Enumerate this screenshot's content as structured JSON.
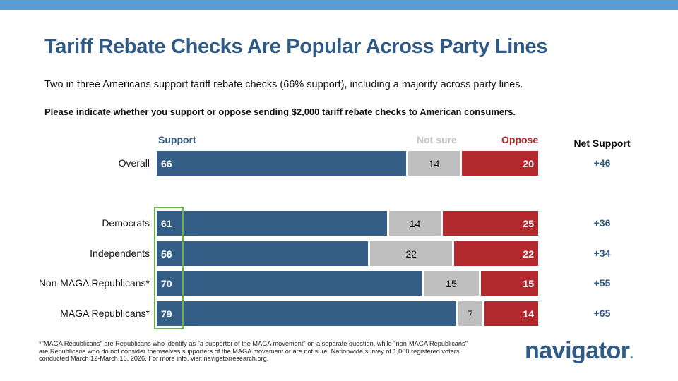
{
  "title": "Tariff Rebate Checks Are Popular Across Party Lines",
  "subtitle": "Two in three Americans support tariff rebate checks (66% support), including a majority across party lines.",
  "question": "Please indicate whether you support or oppose sending $2,000 tariff rebate checks to American consumers.",
  "footnote": "*\"MAGA Republicans\" are Republicans who identify as \"a supporter of the MAGA movement\" on a separate question, while \"non-MAGA Republicans\" are Republicans who do not consider themselves supporters of the MAGA movement or are not sure. Nationwide survey of 1,000 registered voters conducted March 12-March 16, 2026. For more info, visit navigatorresearch.org.",
  "logo": "navigator",
  "chart_data": {
    "type": "bar",
    "orientation": "horizontal-stacked",
    "legend": [
      "Support",
      "Not sure",
      "Oppose"
    ],
    "net_header": "Net Support",
    "colors": {
      "Support": "#355e87",
      "Not sure": "#bfbfbf",
      "Oppose": "#b3282d"
    },
    "categories": [
      "Overall",
      "Democrats",
      "Independents",
      "Non-MAGA Republicans*",
      "MAGA Republicans*"
    ],
    "series": [
      {
        "name": "Support",
        "values": [
          66,
          61,
          56,
          70,
          79
        ]
      },
      {
        "name": "Not sure",
        "values": [
          14,
          14,
          22,
          15,
          7
        ]
      },
      {
        "name": "Oppose",
        "values": [
          20,
          25,
          22,
          15,
          14
        ]
      }
    ],
    "net": [
      "+46",
      "+36",
      "+34",
      "+55",
      "+65"
    ],
    "highlight": "Support values for party groups outlined in green"
  }
}
